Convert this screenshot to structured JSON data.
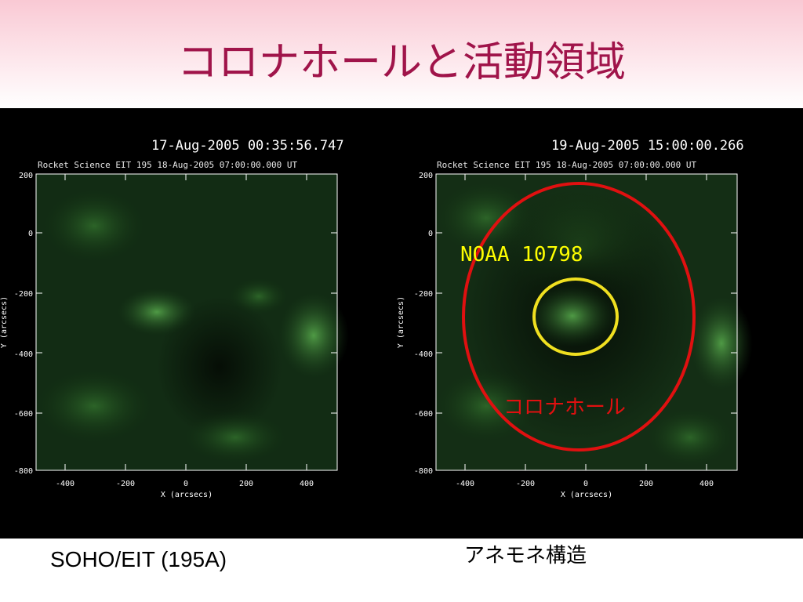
{
  "slide": {
    "title": "コロナホールと活動領域"
  },
  "left_panel": {
    "timestamp": "17-Aug-2005 00:35:56.747",
    "header": "Rocket Science EIT 195 18-Aug-2005 07:00:00.000 UT",
    "x_ticks": [
      "-400",
      "-200",
      "0",
      "200",
      "400"
    ],
    "y_ticks": [
      "200",
      "0",
      "-200",
      "-400",
      "-600",
      "-800"
    ],
    "x_label": "X (arcsecs)",
    "y_label": "Y (arcsecs)"
  },
  "right_panel": {
    "timestamp": "19-Aug-2005 15:00:00.266",
    "header": "Rocket Science EIT 195 18-Aug-2005 07:00:00.000 UT",
    "x_ticks": [
      "-400",
      "-200",
      "0",
      "200",
      "400"
    ],
    "y_ticks": [
      "200",
      "0",
      "-200",
      "-400",
      "-600",
      "-800"
    ],
    "x_label": "X (arcsecs)",
    "y_label": "Y (arcsecs)",
    "active_region_label": "NOAA 10798",
    "coronal_hole_label": "コロナホール"
  },
  "captions": {
    "instrument": "SOHO/EIT (195A)",
    "structure": "アネモネ構造"
  },
  "colors": {
    "title": "#a0144a",
    "coronal_hole_ring": "#e01010",
    "active_region_ring": "#f0e020",
    "region_label": "#ffff00",
    "hole_label": "#e01010"
  }
}
